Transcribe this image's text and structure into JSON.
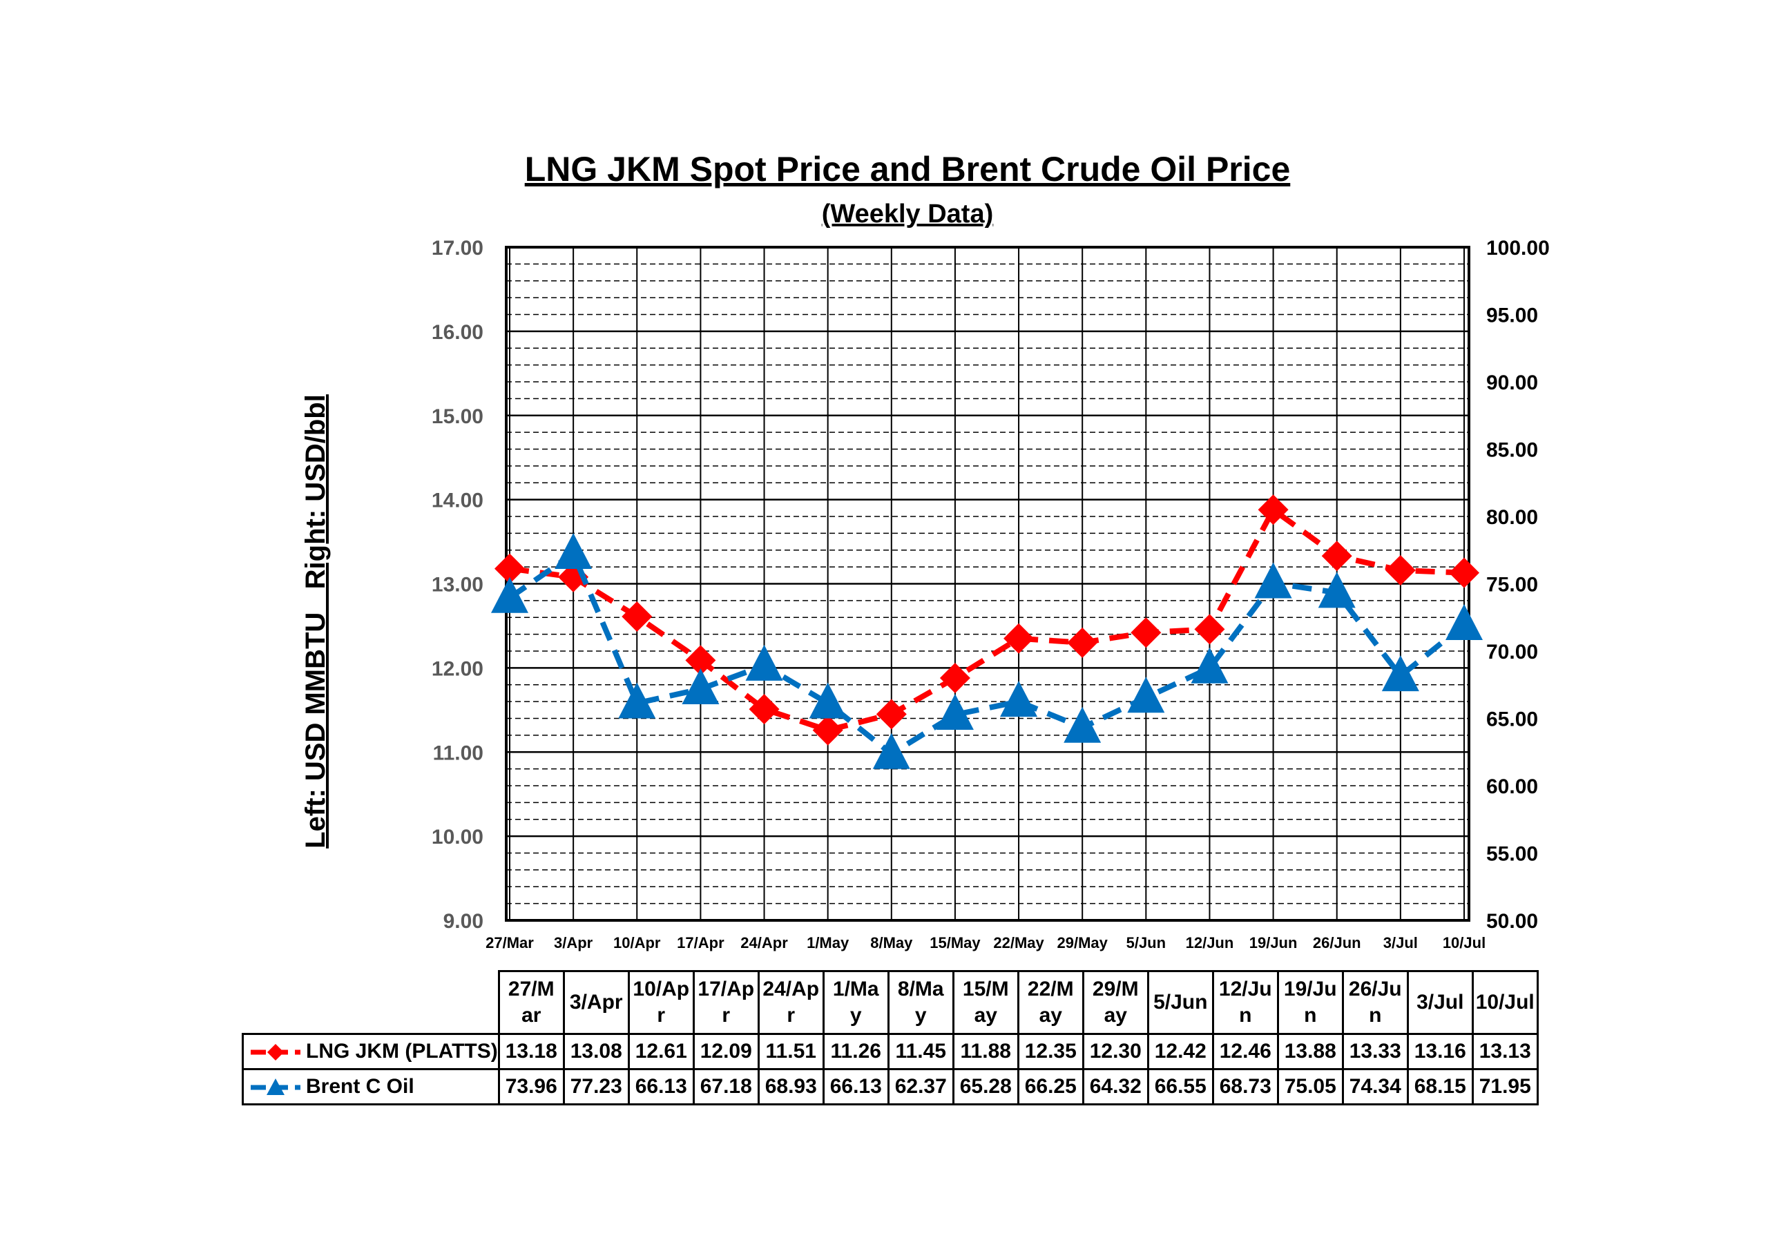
{
  "chart_data": {
    "type": "line",
    "title": "LNG JKM Spot Price and Brent Crude Oil Price",
    "subtitle": "(Weekly Data)",
    "ylabel": "Left: USD MMBTU   Right: USD/bbl",
    "categories": [
      "27/Mar",
      "3/Apr",
      "10/Apr",
      "17/Apr",
      "24/Apr",
      "1/May",
      "8/May",
      "15/May",
      "22/May",
      "29/May",
      "5/Jun",
      "12/Jun",
      "19/Jun",
      "26/Jun",
      "3/Jul",
      "10/Jul"
    ],
    "table_headers": [
      "27/M ar",
      "3/Apr",
      "10/Ap r",
      "17/Ap r",
      "24/Ap r",
      "1/Ma y",
      "8/Ma y",
      "15/M ay",
      "22/M ay",
      "29/M ay",
      "5/Jun",
      "12/Ju n",
      "19/Ju n",
      "26/Ju n",
      "3/Jul",
      "10/Jul"
    ],
    "y_left": {
      "range": [
        9,
        17
      ],
      "ticks": [
        "9.00",
        "10.00",
        "11.00",
        "12.00",
        "13.00",
        "14.00",
        "15.00",
        "16.00",
        "17.00"
      ]
    },
    "y_right": {
      "range": [
        50,
        100
      ],
      "ticks": [
        "50.00",
        "55.00",
        "60.00",
        "65.00",
        "70.00",
        "75.00",
        "80.00",
        "85.00",
        "90.00",
        "95.00",
        "100.00"
      ]
    },
    "grid": true,
    "series": [
      {
        "name": "LNG JKM (PLATTS)",
        "axis": "left",
        "color": "#ff0000",
        "marker": "diamond",
        "values": [
          13.18,
          13.08,
          12.61,
          12.09,
          11.51,
          11.26,
          11.45,
          11.88,
          12.35,
          12.3,
          12.42,
          12.46,
          13.88,
          13.33,
          13.16,
          13.13
        ],
        "labels": [
          "13.18",
          "13.08",
          "12.61",
          "12.09",
          "11.51",
          "11.26",
          "11.45",
          "11.88",
          "12.35",
          "12.30",
          "12.42",
          "12.46",
          "13.88",
          "13.33",
          "13.16",
          "13.13"
        ]
      },
      {
        "name": "Brent C Oil",
        "axis": "right",
        "color": "#0070c0",
        "marker": "triangle",
        "values": [
          73.96,
          77.23,
          66.13,
          67.18,
          68.93,
          66.13,
          62.37,
          65.28,
          66.25,
          64.32,
          66.55,
          68.73,
          75.05,
          74.34,
          68.15,
          71.95
        ],
        "labels": [
          "73.96",
          "77.23",
          "66.13",
          "67.18",
          "68.93",
          "66.13",
          "62.37",
          "65.28",
          "66.25",
          "64.32",
          "66.55",
          "68.73",
          "75.05",
          "74.34",
          "68.15",
          "71.95"
        ]
      }
    ]
  }
}
